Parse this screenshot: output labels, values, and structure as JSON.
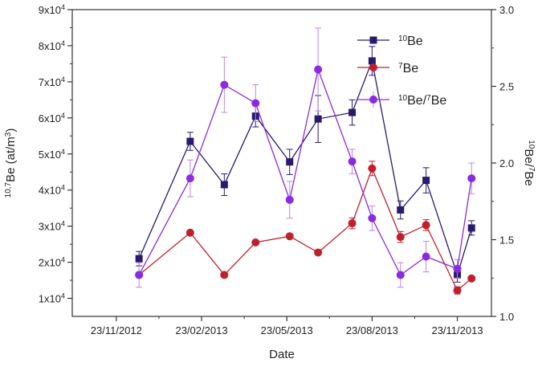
{
  "chart_data": {
    "type": "line",
    "xlabel": "Date",
    "ylabel_left": "10,7Be (at/m3)",
    "ylabel_right": "10Be/7Be",
    "x_ticks": [
      "23/11/2012",
      "23/02/2013",
      "23/05/2013",
      "23/08/2013",
      "23/11/2013"
    ],
    "x_tick_months": [
      0,
      3,
      6,
      9,
      12
    ],
    "xlim_months": [
      -1.55,
      13.2
    ],
    "ylim_left_1e4": [
      0.5,
      9
    ],
    "yticks_left": [
      {
        "value": 1,
        "mantissa": "1x10",
        "exp": "4"
      },
      {
        "value": 2,
        "mantissa": "2x10",
        "exp": "4"
      },
      {
        "value": 3,
        "mantissa": "3x10",
        "exp": "4"
      },
      {
        "value": 4,
        "mantissa": "4x10",
        "exp": "4"
      },
      {
        "value": 5,
        "mantissa": "5x10",
        "exp": "4"
      },
      {
        "value": 6,
        "mantissa": "6x10",
        "exp": "4"
      },
      {
        "value": 7,
        "mantissa": "7x10",
        "exp": "4"
      },
      {
        "value": 8,
        "mantissa": "8x10",
        "exp": "4"
      },
      {
        "value": 9,
        "mantissa": "9x10",
        "exp": "4"
      }
    ],
    "ylim_right": [
      1.0,
      3.0
    ],
    "yticks_right": [
      "1.0",
      "1.5",
      "2.0",
      "2.5",
      "3.0"
    ],
    "series": [
      {
        "name": "10Be",
        "legend_sup": "10",
        "legend_base": "Be",
        "axis": "left",
        "color": "#2a1a6e",
        "marker": "square",
        "x_months": [
          0.8,
          2.6,
          3.8,
          4.9,
          6.1,
          7.1,
          8.3,
          9.0,
          10.0,
          10.9,
          12.0,
          12.5
        ],
        "y": [
          2.1,
          5.35,
          4.15,
          6.05,
          4.78,
          5.97,
          6.15,
          7.58,
          3.45,
          4.27,
          1.65,
          2.95
        ],
        "err": [
          0.2,
          0.25,
          0.3,
          0.3,
          0.35,
          0.65,
          0.35,
          0.4,
          0.25,
          0.35,
          0.2,
          0.2
        ]
      },
      {
        "name": "7Be",
        "legend_sup": "7",
        "legend_base": "Be",
        "axis": "left",
        "color": "#c0202c",
        "marker": "circle",
        "x_months": [
          0.8,
          2.6,
          3.8,
          4.9,
          6.1,
          7.1,
          8.3,
          9.0,
          10.0,
          10.9,
          12.0,
          12.5
        ],
        "y": [
          1.65,
          2.82,
          1.65,
          2.55,
          2.72,
          2.27,
          3.08,
          4.6,
          2.7,
          3.03,
          1.22,
          1.55
        ],
        "err": [
          0.0,
          0.0,
          0.0,
          0.0,
          0.0,
          0.0,
          0.15,
          0.2,
          0.15,
          0.15,
          0.1,
          0.0
        ]
      },
      {
        "name": "10Be/7Be",
        "legend_sup": "10",
        "legend_base": "Be/",
        "legend_sup2": "7",
        "legend_base2": "Be",
        "axis": "right",
        "color": "#8a2be2",
        "marker": "circle",
        "x_months": [
          0.8,
          2.6,
          3.8,
          4.9,
          6.1,
          7.1,
          8.3,
          9.0,
          10.0,
          10.9,
          12.0,
          12.5
        ],
        "y": [
          1.27,
          1.9,
          2.51,
          2.39,
          1.76,
          2.61,
          2.01,
          1.64,
          1.27,
          1.39,
          1.31,
          1.9
        ],
        "err": [
          0.08,
          0.12,
          0.18,
          0.12,
          0.12,
          0.27,
          0.08,
          0.08,
          0.08,
          0.1,
          0.06,
          0.1
        ]
      }
    ]
  }
}
